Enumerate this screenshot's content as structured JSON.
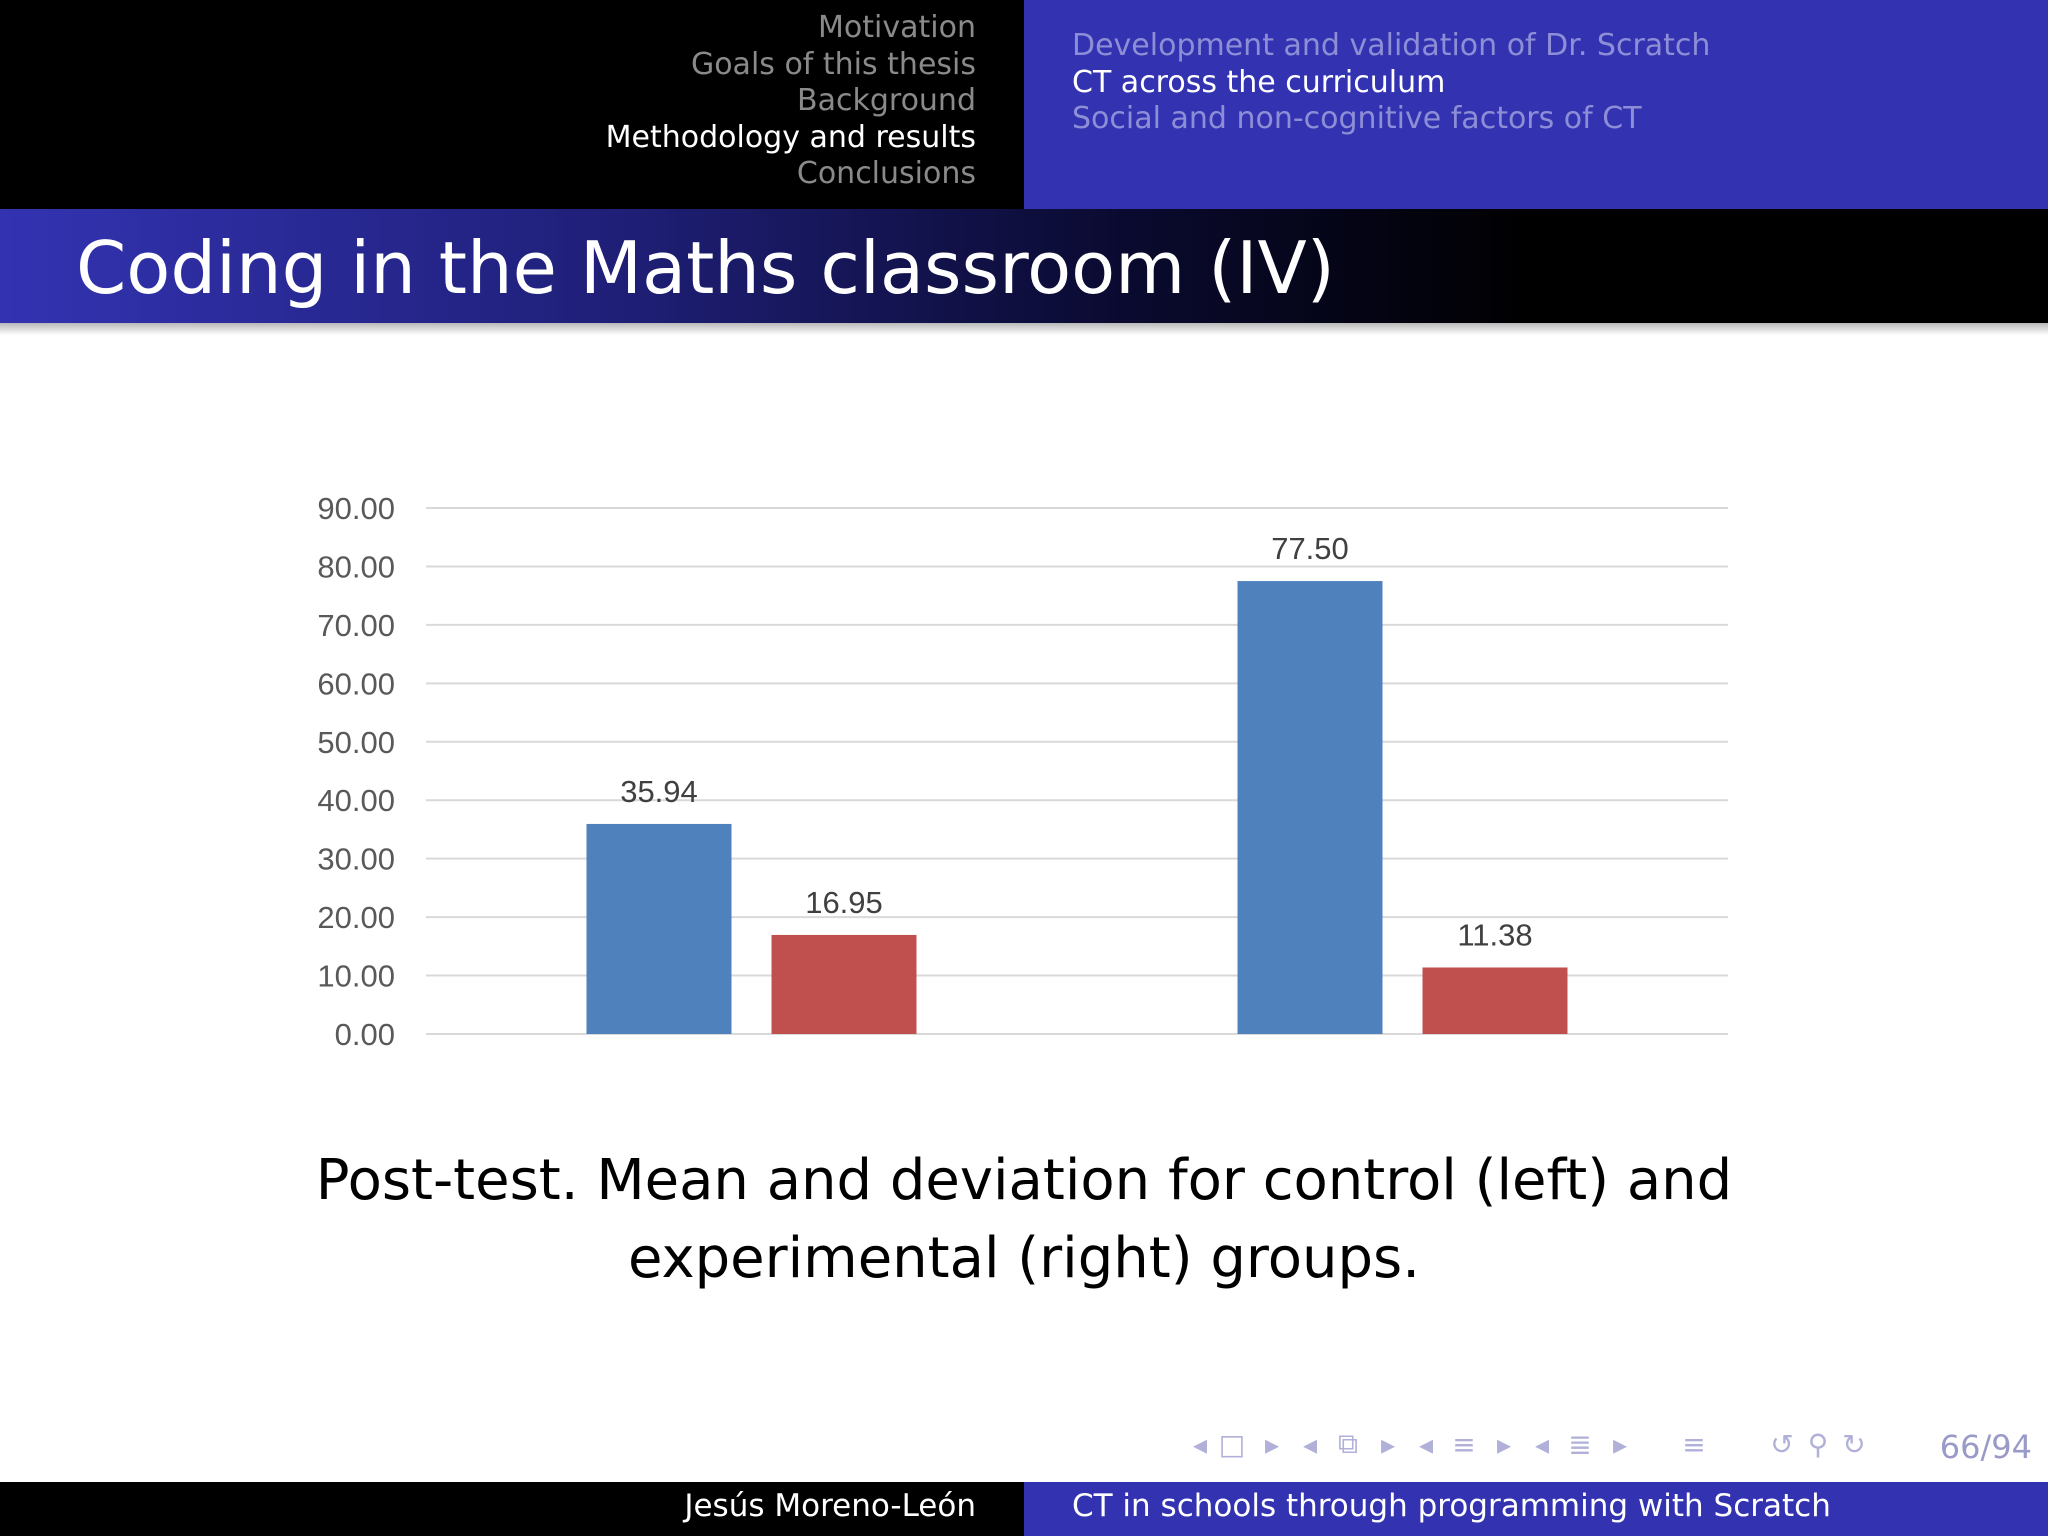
{
  "header": {
    "sections": [
      {
        "label": "Motivation",
        "active": false
      },
      {
        "label": "Goals of this thesis",
        "active": false
      },
      {
        "label": "Background",
        "active": false
      },
      {
        "label": "Methodology and results",
        "active": true
      },
      {
        "label": "Conclusions",
        "active": false
      }
    ],
    "subsections": [
      {
        "label": "Development and validation of Dr. Scratch",
        "active": false
      },
      {
        "label": "CT across the curriculum",
        "active": true
      },
      {
        "label": "Social and non-cognitive factors of CT",
        "active": false
      }
    ]
  },
  "slide": {
    "title": "Coding in the Maths classroom (IV)",
    "caption": "Post-test. Mean and deviation for control (left) and experimental (right) groups."
  },
  "chart_data": {
    "type": "bar",
    "categories": [
      "",
      ""
    ],
    "series": [
      {
        "name": "",
        "color": "#4f81bd",
        "values": [
          35.94,
          77.5
        ],
        "labels": [
          "35.94",
          "77.50"
        ]
      },
      {
        "name": "",
        "color": "#c0504d",
        "values": [
          16.95,
          11.38
        ],
        "labels": [
          "16.95",
          "11.38"
        ]
      }
    ],
    "title": "",
    "xlabel": "",
    "ylabel": "",
    "ylim": [
      0,
      90
    ],
    "yticks": [
      "0.00",
      "10.00",
      "20.00",
      "30.00",
      "40.00",
      "50.00",
      "60.00",
      "70.00",
      "80.00",
      "90.00"
    ],
    "grid": true,
    "legend": "none"
  },
  "navigation": {
    "icons": [
      "nav-prev-icon",
      "nav-frame-icon",
      "nav-next-icon",
      "nav-prev-icon",
      "nav-slides-icon",
      "nav-next-icon",
      "nav-prev-icon",
      "nav-subsection-icon",
      "nav-next-icon",
      "nav-prev-icon",
      "nav-section-icon",
      "nav-next-icon",
      "nav-outline-icon",
      "nav-back-icon",
      "nav-search-icon",
      "nav-forward-icon"
    ],
    "page": "66/94"
  },
  "footer": {
    "author": "Jesús Moreno-León",
    "talk_title": "CT in schools through programming with Scratch"
  }
}
